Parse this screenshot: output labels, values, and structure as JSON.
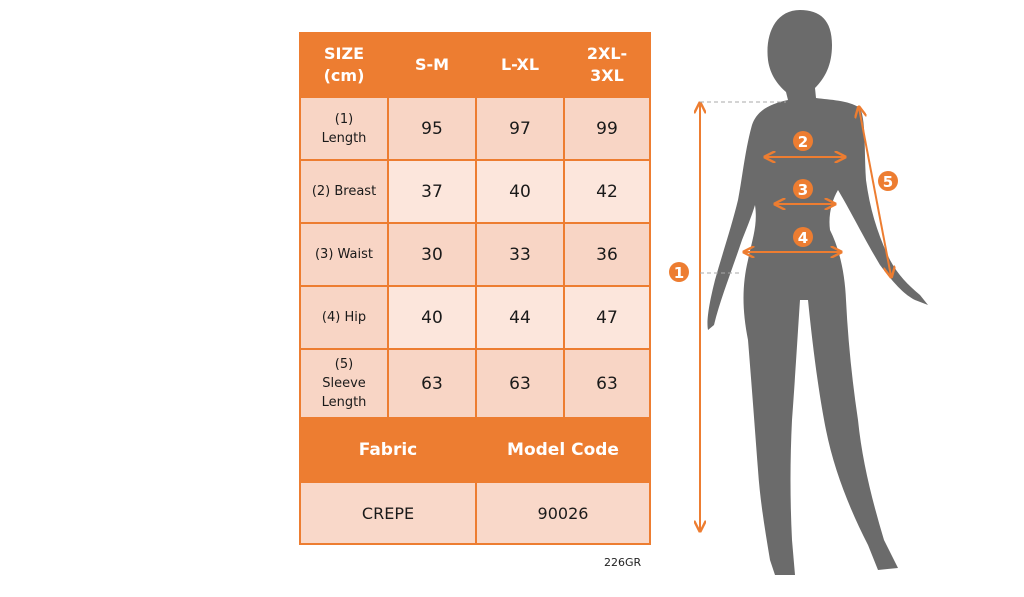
{
  "table": {
    "header": [
      "SIZE\n(cm)",
      "S-M",
      "L-XL",
      "2XL-\n3XL"
    ],
    "rows": [
      {
        "label": "(1)\nLength",
        "values": [
          "95",
          "97",
          "99"
        ]
      },
      {
        "label": "(2) Breast",
        "values": [
          "37",
          "40",
          "42"
        ]
      },
      {
        "label": "(3) Waist",
        "values": [
          "30",
          "33",
          "36"
        ]
      },
      {
        "label": "(4) Hip",
        "values": [
          "40",
          "44",
          "47"
        ]
      },
      {
        "label": "(5)\nSleeve\nLength",
        "values": [
          "63",
          "63",
          "63"
        ]
      }
    ],
    "fabric_label": "Fabric",
    "model_code_label": "Model Code",
    "fabric_value": "CREPE",
    "model_code_value": "90026"
  },
  "product_code": "226GR",
  "figure": {
    "markers": [
      "1",
      "2",
      "3",
      "4",
      "5"
    ]
  },
  "colors": {
    "accent": "#ED7D31",
    "silhouette": "#666666",
    "cell_light": "#FCE6DC",
    "cell_mid": "#F8D5C5"
  }
}
